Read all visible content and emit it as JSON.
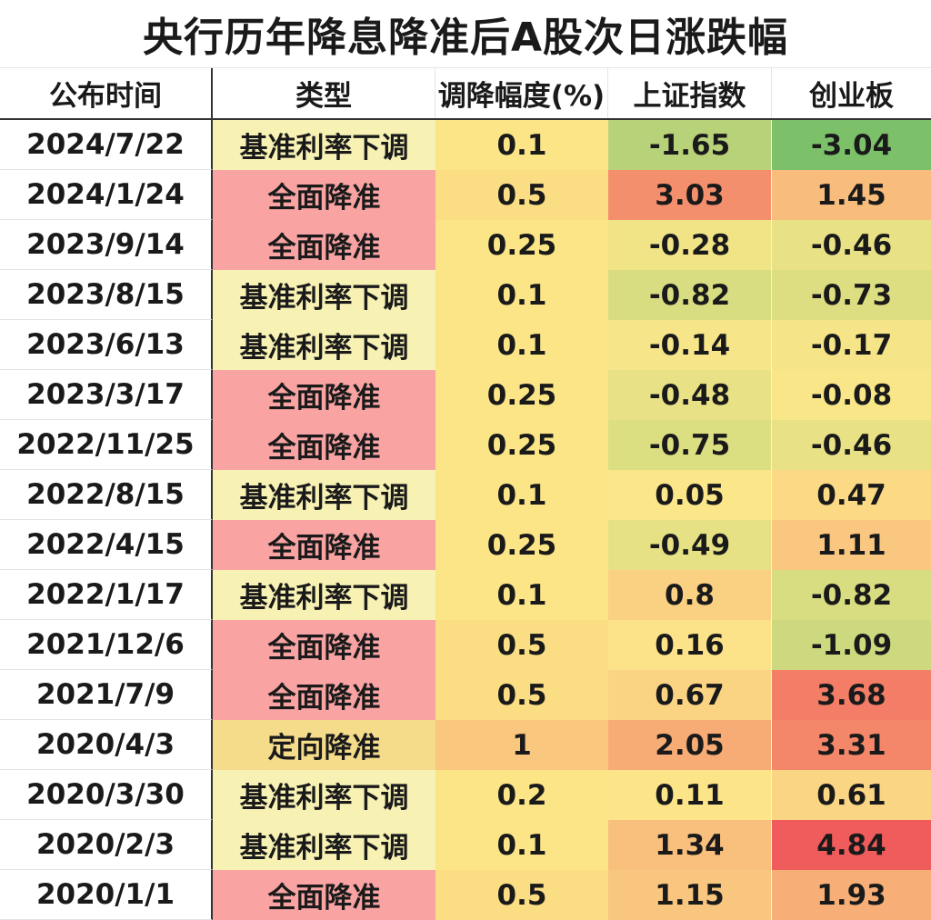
{
  "title": "央行历年降息降准后A股次日涨跌幅",
  "chart_data": {
    "type": "table",
    "columns": [
      "公布时间",
      "类型",
      "调降幅度(%)",
      "上证指数",
      "创业板"
    ],
    "rows": [
      {
        "date": "2024/7/22",
        "type": "基准利率下调",
        "cut": "0.1",
        "sh": "-1.65",
        "cy": "-3.04"
      },
      {
        "date": "2024/1/24",
        "type": "全面降准",
        "cut": "0.5",
        "sh": "3.03",
        "cy": "1.45"
      },
      {
        "date": "2023/9/14",
        "type": "全面降准",
        "cut": "0.25",
        "sh": "-0.28",
        "cy": "-0.46"
      },
      {
        "date": "2023/8/15",
        "type": "基准利率下调",
        "cut": "0.1",
        "sh": "-0.82",
        "cy": "-0.73"
      },
      {
        "date": "2023/6/13",
        "type": "基准利率下调",
        "cut": "0.1",
        "sh": "-0.14",
        "cy": "-0.17"
      },
      {
        "date": "2023/3/17",
        "type": "全面降准",
        "cut": "0.25",
        "sh": "-0.48",
        "cy": "-0.08"
      },
      {
        "date": "2022/11/25",
        "type": "全面降准",
        "cut": "0.25",
        "sh": "-0.75",
        "cy": "-0.46"
      },
      {
        "date": "2022/8/15",
        "type": "基准利率下调",
        "cut": "0.1",
        "sh": "0.05",
        "cy": "0.47"
      },
      {
        "date": "2022/4/15",
        "type": "全面降准",
        "cut": "0.25",
        "sh": "-0.49",
        "cy": "1.11"
      },
      {
        "date": "2022/1/17",
        "type": "基准利率下调",
        "cut": "0.1",
        "sh": "0.8",
        "cy": "-0.82"
      },
      {
        "date": "2021/12/6",
        "type": "全面降准",
        "cut": "0.5",
        "sh": "0.16",
        "cy": "-1.09"
      },
      {
        "date": "2021/7/9",
        "type": "全面降准",
        "cut": "0.5",
        "sh": "0.67",
        "cy": "3.68"
      },
      {
        "date": "2020/4/3",
        "type": "定向降准",
        "cut": "1",
        "sh": "2.05",
        "cy": "3.31"
      },
      {
        "date": "2020/3/30",
        "type": "基准利率下调",
        "cut": "0.2",
        "sh": "0.11",
        "cy": "0.61"
      },
      {
        "date": "2020/2/3",
        "type": "基准利率下调",
        "cut": "0.1",
        "sh": "1.34",
        "cy": "4.84"
      },
      {
        "date": "2020/1/1",
        "type": "全面降准",
        "cut": "0.5",
        "sh": "1.15",
        "cy": "1.93"
      }
    ]
  },
  "colors": {
    "type": {
      "基准利率下调": "#f7f1b4",
      "全面降准": "#f9a3a3",
      "定向降准": "#f5dc8a"
    },
    "cut": {
      "0.1": "#fbe587",
      "0.2": "#fbe587",
      "0.25": "#fbe587",
      "0.5": "#fbde84",
      "1": "#f9c77d"
    },
    "scale_negative": "#7cc16a",
    "scale_neutral": "#fce78a",
    "scale_positive": "#f05b5b"
  }
}
